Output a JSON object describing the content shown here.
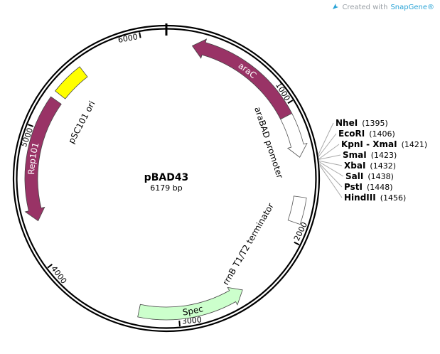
{
  "credit": {
    "prefix": "Created with",
    "brand": "SnapGene®",
    "icon": "snapgene-logo-icon"
  },
  "plasmid": {
    "name": "pBAD43",
    "length_label": "6179 bp",
    "length_bp": 6179
  },
  "ticks": [
    {
      "bp": 1000,
      "label": "1000"
    },
    {
      "bp": 2000,
      "label": "2000"
    },
    {
      "bp": 3000,
      "label": "3000"
    },
    {
      "bp": 4000,
      "label": "4000"
    },
    {
      "bp": 5000,
      "label": "5000"
    },
    {
      "bp": 6000,
      "label": "6000"
    }
  ],
  "features": [
    {
      "name": "araC",
      "start": 190,
      "end": 1075,
      "direction": "reverse",
      "shape": "arrow",
      "fill": "#993366",
      "label_color": "#ffffff",
      "label_inside": true
    },
    {
      "name": "araBAD promoter",
      "start": 1075,
      "end": 1390,
      "direction": "forward",
      "shape": "arrow",
      "fill": "#ffffff",
      "label_color": "#000000",
      "label_inside": false
    },
    {
      "name": "rrnB T1/T2 terminator",
      "start": 1680,
      "end": 1870,
      "direction": "none",
      "shape": "box",
      "fill": "#ffffff",
      "label_color": "#000000",
      "label_inside": false
    },
    {
      "name": "Spec",
      "start": 2500,
      "end": 3290,
      "direction": "reverse",
      "shape": "arrow",
      "fill": "#ccffcc",
      "label_color": "#000000",
      "label_inside": true
    },
    {
      "name": "Rep101",
      "start": 4320,
      "end": 5240,
      "direction": "reverse",
      "shape": "arrow",
      "fill": "#993366",
      "label_color": "#ffffff",
      "label_inside": true
    },
    {
      "name": "pSC101 ori",
      "start": 5290,
      "end": 5530,
      "direction": "none",
      "shape": "box",
      "fill": "#ffff00",
      "label_color": "#000000",
      "label_inside": false
    }
  ],
  "sites": [
    {
      "name": "NheI",
      "position": "(1395)",
      "bp": 1395
    },
    {
      "name": "EcoRI",
      "position": "(1406)",
      "bp": 1406
    },
    {
      "name": "KpnI - XmaI",
      "position": "(1421)",
      "bp": 1421
    },
    {
      "name": "SmaI",
      "position": "(1423)",
      "bp": 1423
    },
    {
      "name": "XbaI",
      "position": "(1432)",
      "bp": 1432
    },
    {
      "name": "SalI",
      "position": "(1438)",
      "bp": 1438
    },
    {
      "name": "PstI",
      "position": "(1448)",
      "bp": 1448
    },
    {
      "name": "HindIII",
      "position": "(1456)",
      "bp": 1456
    }
  ]
}
